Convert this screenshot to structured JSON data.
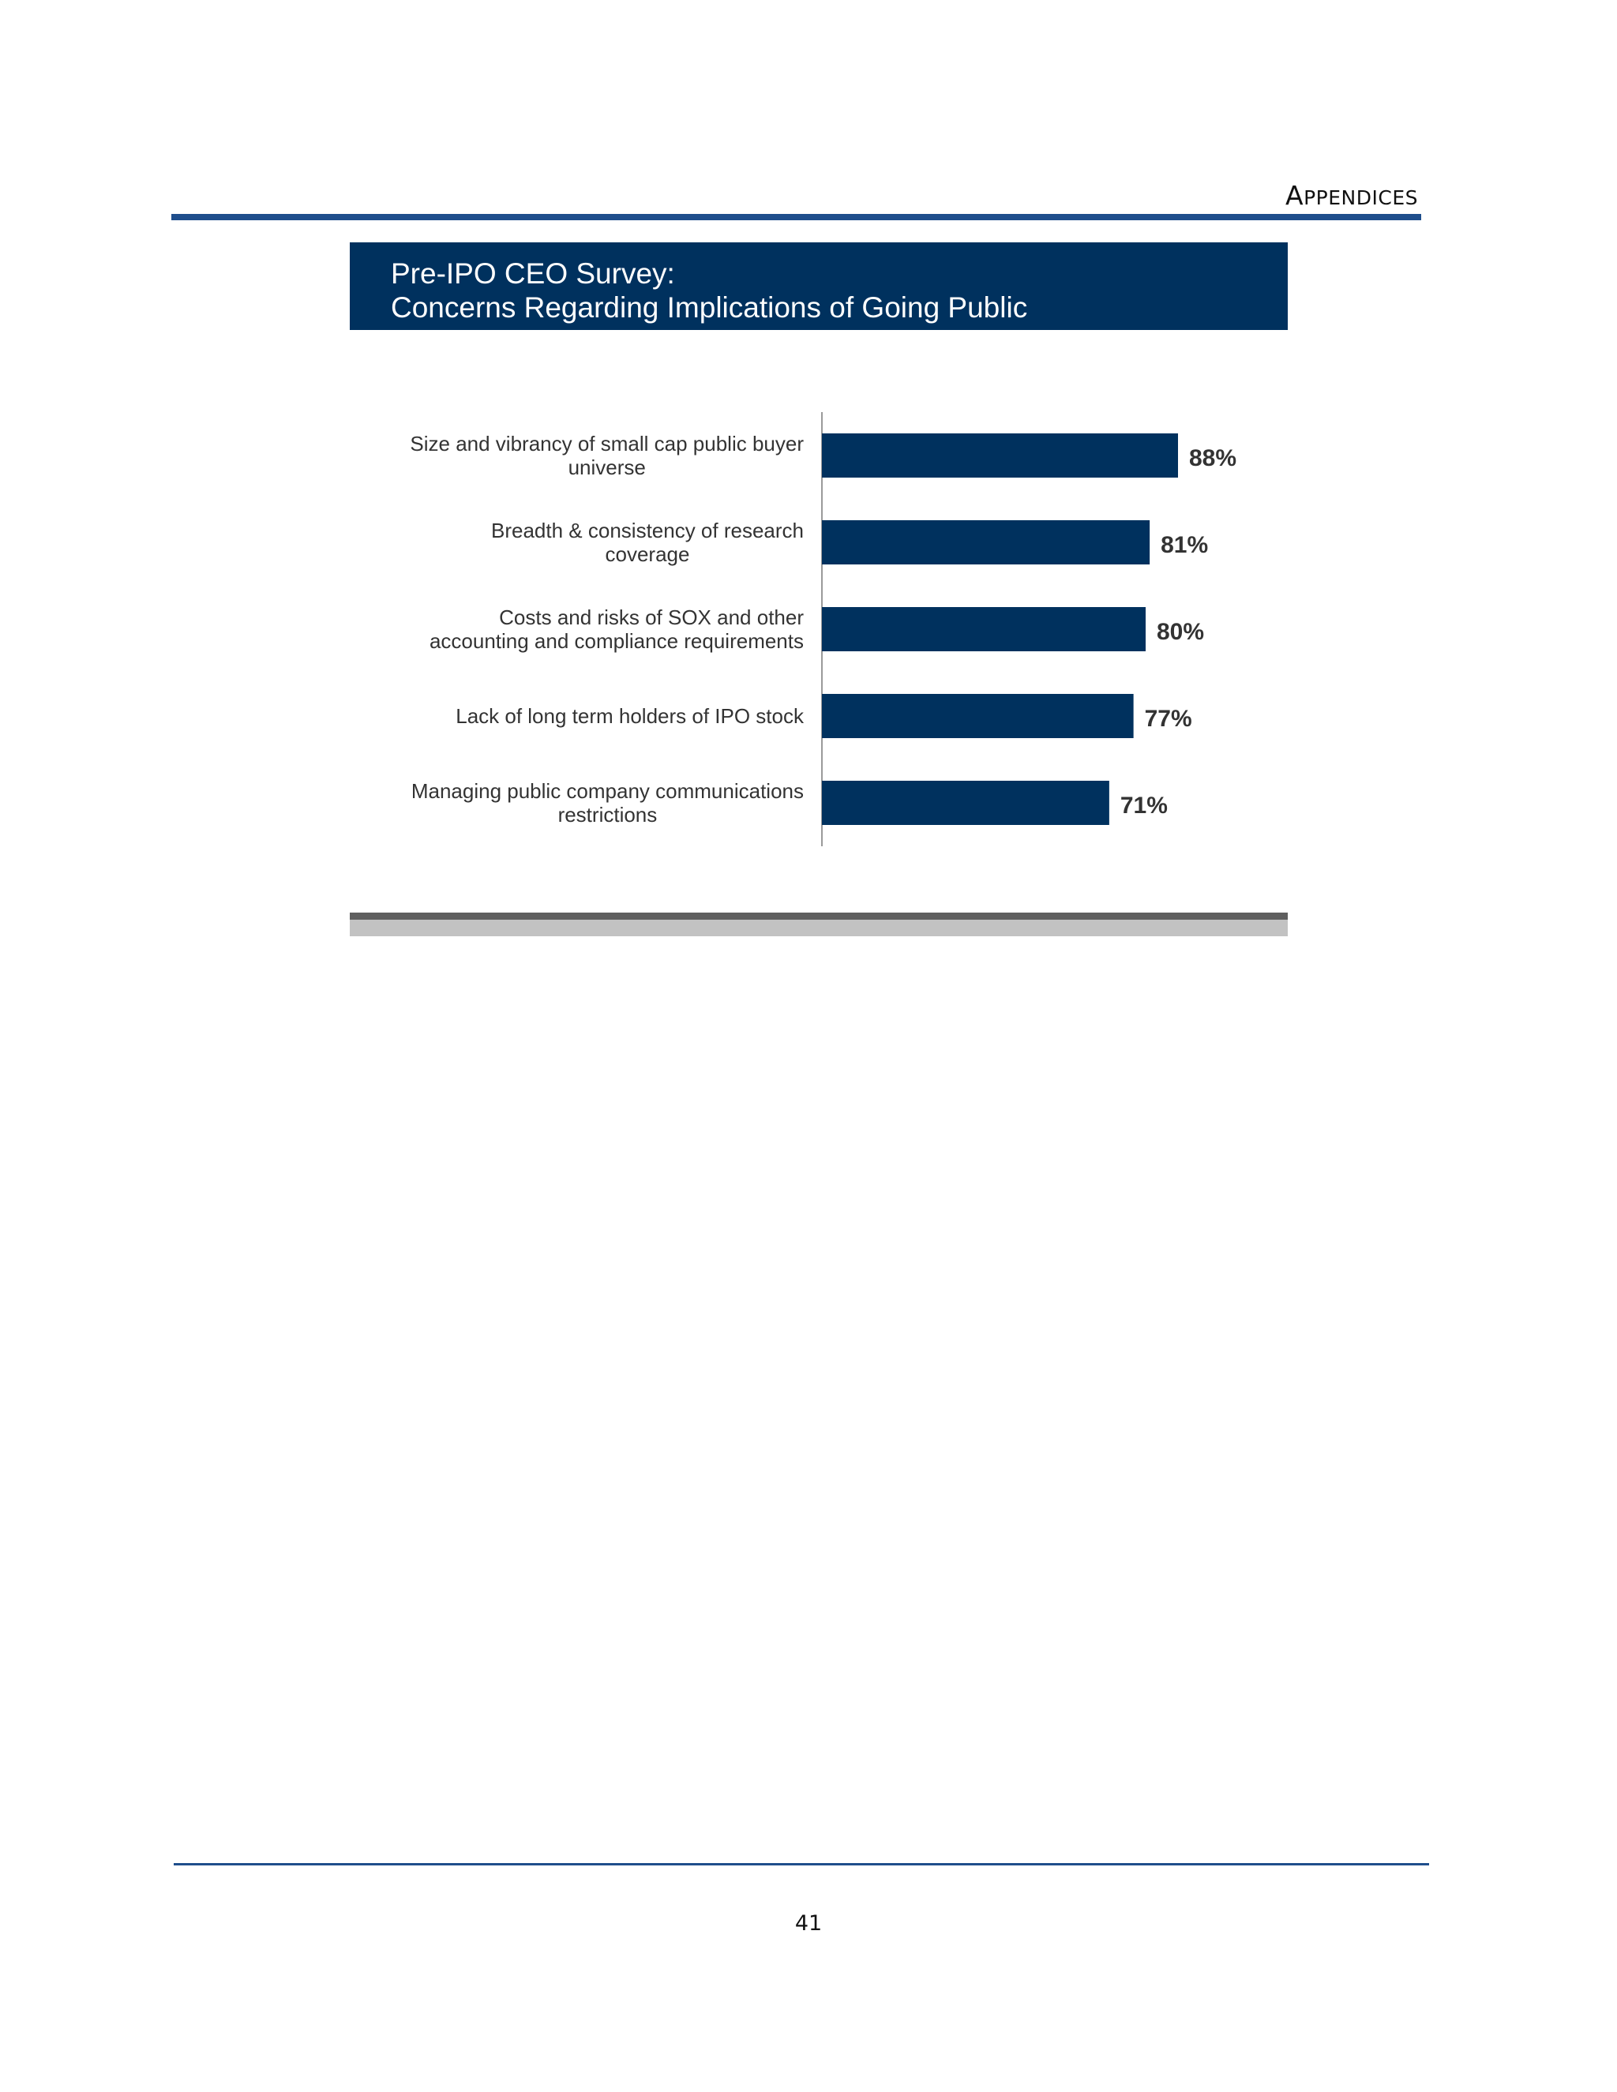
{
  "header": {
    "section_initial": "A",
    "section_rest": "PPENDICES"
  },
  "figure": {
    "title_line1": "Pre-IPO CEO  Survey:",
    "title_line2": "Concerns Regarding Implications of Going Public"
  },
  "chart_data": {
    "type": "bar",
    "orientation": "horizontal",
    "title": "Pre-IPO CEO  Survey: Concerns Regarding Implications of Going Public",
    "categories": [
      [
        "Size and vibrancy of small cap public buyer",
        "universe"
      ],
      [
        "Breadth & consistency of research",
        "coverage"
      ],
      [
        "Costs and risks of SOX and other",
        "accounting and compliance requirements"
      ],
      [
        "Lack of long term holders of IPO stock"
      ],
      [
        "Managing public company communications",
        "restrictions"
      ]
    ],
    "values": [
      88,
      81,
      80,
      77,
      71
    ],
    "value_labels": [
      "88%",
      "81%",
      "80%",
      "77%",
      "71%"
    ],
    "unit": "%",
    "xlim": [
      0,
      100
    ],
    "bar_color": "#00315e",
    "grid": false,
    "legend": "none"
  },
  "footer": {
    "page_number": "41"
  },
  "colors": {
    "rule": "#1f4e8c",
    "title_band": "#00315e"
  }
}
